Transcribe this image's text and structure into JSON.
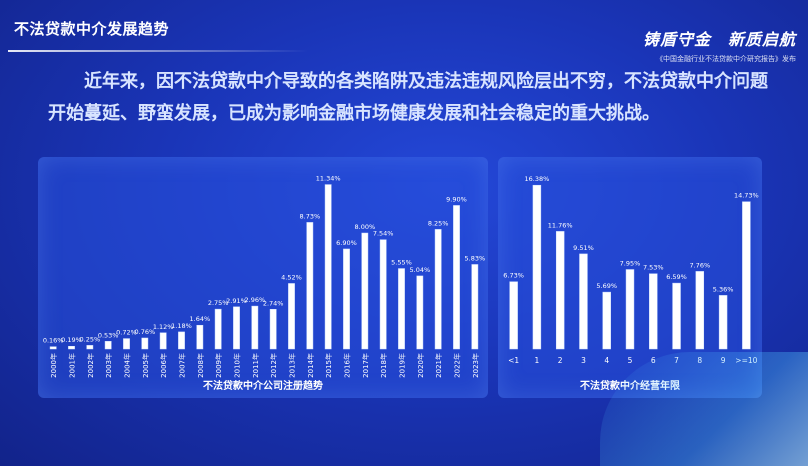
{
  "page": {
    "title": "不法贷款中介发展趋势",
    "brand_line1": "铸盾守金　新质启航",
    "brand_line2": "《中国金融行业不法贷款中介研究报告》发布",
    "intro": "近年来，因不法贷款中介导致的各类陷阱及违法违规风险层出不穷，不法贷款中介问题开始蔓延、野蛮发展，已成为影响金融市场健康发展和社会稳定的重大挑战。"
  },
  "colors": {
    "bar_fill": "#ffffff",
    "bar_edge": "#cfe0ff"
  },
  "chart_data": [
    {
      "type": "bar",
      "title": "不法贷款中介公司注册趋势",
      "categories": [
        "2000年",
        "2001年",
        "2002年",
        "2003年",
        "2004年",
        "2005年",
        "2006年",
        "2007年",
        "2008年",
        "2009年",
        "2010年",
        "2011年",
        "2012年",
        "2013年",
        "2014年",
        "2015年",
        "2016年",
        "2017年",
        "2018年",
        "2019年",
        "2020年",
        "2021年",
        "2022年",
        "2023年"
      ],
      "values": [
        0.16,
        0.19,
        0.25,
        0.53,
        0.72,
        0.76,
        1.12,
        1.18,
        1.64,
        2.75,
        2.91,
        2.96,
        2.74,
        4.52,
        8.73,
        11.34,
        6.9,
        8.0,
        7.54,
        5.55,
        5.04,
        8.25,
        9.9,
        5.83
      ],
      "labels": [
        "0.16%",
        "0.19%",
        "0.25%",
        "0.53%",
        "0.72%",
        "0.76%",
        "1.12%",
        "1.18%",
        "1.64%",
        "2.75%",
        "2.91%",
        "2.96%",
        "2.74%",
        "4.52%",
        "8.73%",
        "11.34%",
        "6.90%",
        "8.00%",
        "7.54%",
        "5.55%",
        "5.04%",
        "8.25%",
        "9.90%",
        "5.83%"
      ],
      "ylim": [
        0,
        12
      ]
    },
    {
      "type": "bar",
      "title": "不法贷款中介经营年限",
      "categories": [
        "<1",
        "1",
        "2",
        "3",
        "4",
        "5",
        "6",
        "7",
        "8",
        "9",
        ">=10"
      ],
      "values": [
        6.73,
        16.38,
        11.76,
        9.51,
        5.69,
        7.95,
        7.53,
        6.59,
        7.76,
        5.36,
        14.73
      ],
      "labels": [
        "6.73%",
        "16.38%",
        "11.76%",
        "9.51%",
        "5.69%",
        "7.95%",
        "7.53%",
        "6.59%",
        "7.76%",
        "5.36%",
        "14.73%"
      ],
      "ylim": [
        0,
        17
      ]
    }
  ]
}
